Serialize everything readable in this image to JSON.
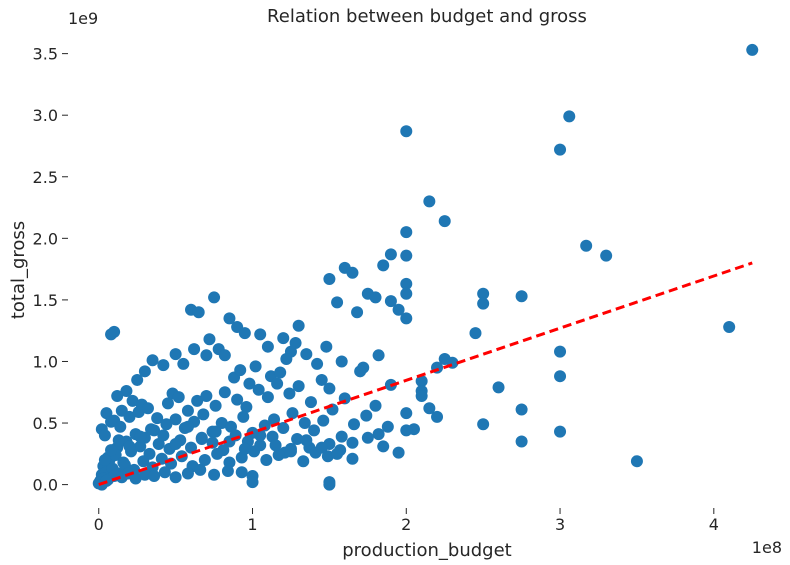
{
  "chart_data": {
    "type": "scatter",
    "title": "Relation between budget and gross",
    "xlabel": "production_budget",
    "ylabel": "total_gross",
    "x_offset_label": "1e8",
    "y_offset_label": "1e9",
    "xlim": [
      -0.2,
      4.45
    ],
    "ylim": [
      -0.19,
      3.7
    ],
    "x_ticks": [
      0,
      1,
      2,
      3,
      4
    ],
    "x_tick_labels": [
      "0",
      "1",
      "2",
      "3",
      "4"
    ],
    "y_ticks": [
      0,
      0.5,
      1.0,
      1.5,
      2.0,
      2.5,
      3.0,
      3.5
    ],
    "y_tick_labels": [
      "0.0",
      "0.5",
      "1.0",
      "1.5",
      "2.0",
      "2.5",
      "3.0",
      "3.5"
    ],
    "grid": false,
    "legend": "none",
    "point_color": "#1f77b4",
    "trendline": {
      "style": "dashed",
      "color": "#ff0000",
      "x": [
        0,
        4.25
      ],
      "y": [
        0.0,
        1.8
      ]
    },
    "series": [
      {
        "x": [
          4.25,
          3.06,
          3.0,
          2.0,
          2.15,
          2.25,
          2.0,
          1.9,
          2.0,
          1.85,
          3.17,
          3.3,
          4.1,
          3.5,
          2.6,
          2.75,
          2.75,
          2.75,
          3.0,
          3.0,
          2.5,
          2.5,
          2.25,
          2.3,
          2.45,
          2.2,
          2.1,
          2.1,
          2.15,
          0.1,
          0.08,
          0.6,
          0.65,
          0.75,
          0.85,
          0.9,
          0.95,
          0.72,
          0.78,
          0.82,
          1.2,
          1.25,
          1.3,
          1.28,
          1.5,
          1.55,
          1.6,
          1.65,
          1.68,
          1.75,
          1.8,
          1.9,
          1.95,
          2.0,
          2.0,
          2.0,
          1.05,
          1.1,
          1.22,
          1.35,
          1.42,
          1.48,
          1.58,
          1.72,
          1.82,
          0.5,
          0.55,
          0.62,
          0.7,
          0.88,
          0.92,
          0.98,
          1.02,
          1.12,
          1.18,
          0.3,
          0.35,
          0.42,
          0.48,
          0.25,
          0.18,
          0.22,
          0.28,
          0.12,
          0.15,
          0.05,
          0.08,
          0.02,
          0.04,
          0.1,
          0.14,
          0.2,
          0.26,
          0.32,
          0.38,
          0.45,
          0.52,
          0.58,
          0.64,
          0.7,
          0.76,
          0.82,
          0.9,
          0.96,
          1.04,
          1.1,
          1.16,
          1.24,
          1.3,
          1.38,
          1.45,
          1.5,
          1.6,
          1.7,
          1.8,
          1.9,
          2.0,
          2.1,
          2.2,
          0.06,
          0.12,
          0.18,
          0.24,
          0.3,
          0.36,
          0.44,
          0.5,
          0.56,
          0.62,
          0.68,
          0.74,
          0.8,
          0.86,
          0.94,
          1.0,
          1.08,
          1.14,
          1.2,
          1.26,
          1.34,
          1.4,
          1.46,
          1.52,
          1.58,
          1.66,
          1.74,
          1.82,
          1.88,
          0.03,
          0.07,
          0.11,
          0.16,
          0.21,
          0.27,
          0.33,
          0.39,
          0.46,
          0.53,
          0.6,
          0.67,
          0.74,
          0.81,
          0.89,
          0.97,
          1.05,
          1.13,
          1.21,
          1.29,
          1.37,
          1.5,
          0.02,
          0.05,
          0.09,
          0.13,
          0.17,
          0.23,
          0.29,
          0.35,
          0.41,
          0.47,
          0.54,
          0.61,
          0.69,
          0.77,
          0.85,
          0.93,
          1.01,
          1.09,
          1.17,
          1.25,
          1.33,
          1.41,
          1.49,
          1.57,
          1.65,
          0.01,
          0.03,
          0.06,
          0.1,
          0.15,
          0.19,
          0.24,
          0.3,
          0.36,
          0.43,
          0.5,
          0.58,
          0.66,
          0.75,
          0.84,
          0.93,
          1.0,
          1.5,
          0.04,
          0.08,
          0.13,
          0.2,
          0.27,
          0.34,
          0.42,
          0.5,
          0.58,
          0.67,
          0.76,
          0.85,
          0.95,
          1.05,
          1.15,
          1.25,
          1.35,
          1.45,
          1.55,
          1.65,
          1.75,
          1.85,
          1.95,
          2.05,
          1.0,
          1.5,
          2.0,
          2.5,
          3.0,
          0.0,
          0.01,
          0.02,
          0.05
        ],
        "y": [
          3.53,
          2.99,
          2.72,
          2.87,
          2.3,
          2.14,
          2.05,
          1.87,
          1.86,
          1.78,
          1.94,
          1.86,
          1.28,
          0.19,
          0.79,
          1.53,
          0.61,
          0.35,
          1.08,
          0.88,
          1.55,
          1.47,
          1.02,
          0.99,
          1.23,
          0.95,
          0.84,
          0.76,
          0.62,
          1.24,
          1.22,
          1.42,
          1.4,
          1.52,
          1.35,
          1.28,
          1.23,
          1.18,
          1.1,
          1.05,
          1.19,
          1.08,
          1.29,
          1.15,
          1.67,
          1.48,
          1.76,
          1.72,
          1.4,
          1.55,
          1.52,
          1.49,
          1.42,
          1.63,
          1.55,
          1.35,
          1.22,
          1.12,
          1.02,
          1.06,
          0.98,
          1.12,
          1.0,
          0.95,
          1.05,
          1.06,
          0.98,
          1.1,
          1.05,
          0.87,
          0.93,
          0.82,
          0.96,
          0.88,
          0.91,
          0.92,
          1.01,
          0.97,
          0.74,
          0.85,
          0.76,
          0.68,
          0.65,
          0.72,
          0.6,
          0.58,
          0.51,
          0.45,
          0.4,
          0.52,
          0.47,
          0.55,
          0.59,
          0.62,
          0.54,
          0.66,
          0.71,
          0.6,
          0.68,
          0.72,
          0.64,
          0.75,
          0.69,
          0.63,
          0.77,
          0.71,
          0.82,
          0.74,
          0.8,
          0.67,
          0.85,
          0.78,
          0.7,
          0.92,
          0.64,
          0.81,
          0.58,
          0.72,
          0.55,
          0.22,
          0.3,
          0.35,
          0.41,
          0.38,
          0.44,
          0.49,
          0.53,
          0.46,
          0.51,
          0.57,
          0.43,
          0.5,
          0.47,
          0.55,
          0.42,
          0.48,
          0.53,
          0.46,
          0.58,
          0.5,
          0.44,
          0.52,
          0.61,
          0.39,
          0.49,
          0.56,
          0.41,
          0.47,
          0.15,
          0.2,
          0.24,
          0.18,
          0.27,
          0.31,
          0.25,
          0.33,
          0.29,
          0.36,
          0.3,
          0.38,
          0.34,
          0.28,
          0.4,
          0.35,
          0.32,
          0.39,
          0.26,
          0.37,
          0.3,
          0.33,
          0.08,
          0.1,
          0.13,
          0.09,
          0.16,
          0.12,
          0.19,
          0.14,
          0.21,
          0.17,
          0.23,
          0.15,
          0.2,
          0.25,
          0.18,
          0.22,
          0.27,
          0.2,
          0.24,
          0.29,
          0.19,
          0.26,
          0.23,
          0.28,
          0.21,
          0.03,
          0.05,
          0.04,
          0.07,
          0.06,
          0.09,
          0.05,
          0.08,
          0.07,
          0.1,
          0.06,
          0.09,
          0.12,
          0.08,
          0.11,
          0.1,
          0.07,
          0.0,
          0.2,
          0.28,
          0.36,
          0.31,
          0.39,
          0.45,
          0.4,
          0.33,
          0.47,
          0.37,
          0.43,
          0.35,
          0.29,
          0.4,
          0.32,
          0.27,
          0.36,
          0.3,
          0.25,
          0.34,
          0.38,
          0.31,
          0.26,
          0.45,
          0.02,
          0.02,
          0.44,
          0.49,
          0.43,
          0.01,
          0.02,
          0.0,
          0.03
        ]
      }
    ]
  }
}
